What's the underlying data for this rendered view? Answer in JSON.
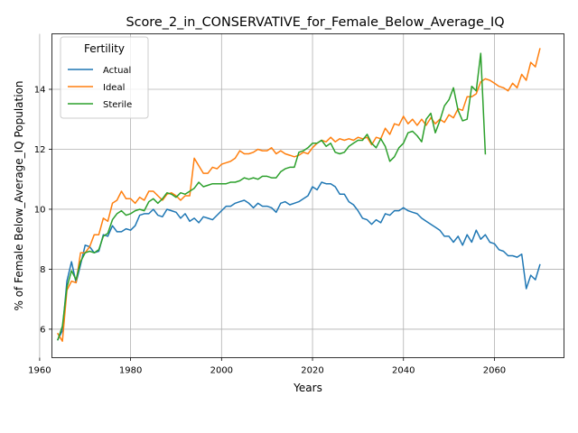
{
  "chart_data": {
    "type": "line",
    "title": "Score_2_in_CONSERVATIVE_for_Female_Below_Average_IQ",
    "xlabel": "Years",
    "ylabel": "% of Female Below_Average_IQ Population",
    "xlim": [
      1962.7,
      2075.3
    ],
    "ylim": [
      5.05,
      15.85
    ],
    "grid": true,
    "xticks": [
      1960,
      1980,
      2000,
      2020,
      2040,
      2060
    ],
    "yticks": [
      6,
      8,
      10,
      12,
      14
    ],
    "legend": {
      "title": "Fertility",
      "placement": "top-left"
    },
    "series": [
      {
        "name": "Actual",
        "color": "#1f77b4",
        "x": [
          1964,
          1965,
          1966,
          1967,
          1968,
          1969,
          1970,
          1971,
          1972,
          1973,
          1974,
          1975,
          1976,
          1977,
          1978,
          1979,
          1980,
          1981,
          1982,
          1983,
          1984,
          1985,
          1986,
          1987,
          1988,
          1989,
          1990,
          1991,
          1992,
          1993,
          1994,
          1995,
          1996,
          1997,
          1998,
          1999,
          2000,
          2001,
          2002,
          2003,
          2004,
          2005,
          2006,
          2007,
          2008,
          2009,
          2010,
          2011,
          2012,
          2013,
          2014,
          2015,
          2016,
          2017,
          2018,
          2019,
          2020,
          2021,
          2022,
          2023,
          2024,
          2025,
          2026,
          2027,
          2028,
          2029,
          2030,
          2031,
          2032,
          2033,
          2034,
          2035,
          2036,
          2037,
          2038,
          2039,
          2040,
          2041,
          2042,
          2043,
          2044,
          2045,
          2046,
          2047,
          2048,
          2049,
          2050,
          2051,
          2052,
          2053,
          2054,
          2055,
          2056,
          2057,
          2058,
          2059,
          2060,
          2061,
          2062,
          2063,
          2064,
          2065,
          2066,
          2067,
          2068,
          2069,
          2070
        ],
        "y": [
          5.65,
          5.95,
          7.6,
          8.25,
          7.55,
          8.15,
          8.8,
          8.75,
          8.55,
          8.6,
          9.15,
          9.1,
          9.45,
          9.25,
          9.25,
          9.35,
          9.3,
          9.45,
          9.8,
          9.85,
          9.85,
          10.0,
          9.8,
          9.75,
          10.0,
          9.95,
          9.9,
          9.7,
          9.85,
          9.6,
          9.7,
          9.55,
          9.75,
          9.7,
          9.65,
          9.8,
          9.95,
          10.1,
          10.1,
          10.2,
          10.25,
          10.3,
          10.2,
          10.05,
          10.2,
          10.1,
          10.1,
          10.05,
          9.9,
          10.2,
          10.25,
          10.15,
          10.2,
          10.25,
          10.35,
          10.45,
          10.75,
          10.65,
          10.9,
          10.85,
          10.85,
          10.75,
          10.5,
          10.5,
          10.25,
          10.15,
          9.95,
          9.7,
          9.65,
          9.5,
          9.65,
          9.55,
          9.85,
          9.8,
          9.95,
          9.95,
          10.05,
          9.95,
          9.9,
          9.85,
          9.7,
          9.6,
          9.5,
          9.4,
          9.3,
          9.1,
          9.1,
          8.9,
          9.1,
          8.8,
          9.15,
          8.9,
          9.3,
          9.0,
          9.15,
          8.9,
          8.85,
          8.65,
          8.6,
          8.45,
          8.45,
          8.4,
          8.5,
          7.35,
          7.8,
          7.65,
          8.15
        ]
      },
      {
        "name": "Ideal",
        "color": "#ff7f0e",
        "x": [
          1964,
          1965,
          1966,
          1967,
          1968,
          1969,
          1970,
          1971,
          1972,
          1973,
          1974,
          1975,
          1976,
          1977,
          1978,
          1979,
          1980,
          1981,
          1982,
          1983,
          1984,
          1985,
          1986,
          1987,
          1988,
          1989,
          1990,
          1991,
          1992,
          1993,
          1994,
          1995,
          1996,
          1997,
          1998,
          1999,
          2000,
          2001,
          2002,
          2003,
          2004,
          2005,
          2006,
          2007,
          2008,
          2009,
          2010,
          2011,
          2012,
          2013,
          2014,
          2015,
          2016,
          2017,
          2018,
          2019,
          2020,
          2021,
          2022,
          2023,
          2024,
          2025,
          2026,
          2027,
          2028,
          2029,
          2030,
          2031,
          2032,
          2033,
          2034,
          2035,
          2036,
          2037,
          2038,
          2039,
          2040,
          2041,
          2042,
          2043,
          2044,
          2045,
          2046,
          2047,
          2048,
          2049,
          2050,
          2051,
          2052,
          2053,
          2054,
          2055,
          2056,
          2057,
          2058,
          2059,
          2060,
          2061,
          2062,
          2063,
          2064,
          2065,
          2066,
          2067,
          2068,
          2069,
          2070
        ],
        "y": [
          5.85,
          5.6,
          7.3,
          7.6,
          7.55,
          8.55,
          8.55,
          8.75,
          9.15,
          9.15,
          9.7,
          9.6,
          10.2,
          10.3,
          10.6,
          10.35,
          10.35,
          10.2,
          10.4,
          10.3,
          10.6,
          10.6,
          10.45,
          10.3,
          10.5,
          10.55,
          10.45,
          10.3,
          10.45,
          10.45,
          11.7,
          11.45,
          11.2,
          11.2,
          11.4,
          11.35,
          11.5,
          11.55,
          11.6,
          11.7,
          11.95,
          11.85,
          11.85,
          11.9,
          12.0,
          11.95,
          11.95,
          12.05,
          11.85,
          11.95,
          11.85,
          11.8,
          11.75,
          11.8,
          11.9,
          11.85,
          12.05,
          12.2,
          12.3,
          12.25,
          12.4,
          12.25,
          12.35,
          12.3,
          12.35,
          12.3,
          12.4,
          12.35,
          12.4,
          12.15,
          12.4,
          12.35,
          12.7,
          12.5,
          12.85,
          12.8,
          13.1,
          12.85,
          13.0,
          12.8,
          13.0,
          12.8,
          13.05,
          12.85,
          13.0,
          12.9,
          13.15,
          13.05,
          13.35,
          13.3,
          13.75,
          13.75,
          13.85,
          14.25,
          14.35,
          14.3,
          14.2,
          14.1,
          14.05,
          13.95,
          14.2,
          14.05,
          14.5,
          14.3,
          14.9,
          14.75,
          15.35
        ]
      },
      {
        "name": "Sterile",
        "color": "#2ca02c",
        "x": [
          1964,
          1965,
          1966,
          1967,
          1968,
          1969,
          1970,
          1971,
          1972,
          1973,
          1974,
          1975,
          1976,
          1977,
          1978,
          1979,
          1980,
          1981,
          1982,
          1983,
          1984,
          1985,
          1986,
          1987,
          1988,
          1989,
          1990,
          1991,
          1992,
          1993,
          1994,
          1995,
          1996,
          1997,
          1998,
          1999,
          2000,
          2001,
          2002,
          2003,
          2004,
          2005,
          2006,
          2007,
          2008,
          2009,
          2010,
          2011,
          2012,
          2013,
          2014,
          2015,
          2016,
          2017,
          2018,
          2019,
          2020,
          2021,
          2022,
          2023,
          2024,
          2025,
          2026,
          2027,
          2028,
          2029,
          2030,
          2031,
          2032,
          2033,
          2034,
          2035,
          2036,
          2037,
          2038,
          2039,
          2040,
          2041,
          2042,
          2043,
          2044,
          2045,
          2046,
          2047,
          2048,
          2049,
          2050,
          2051,
          2052,
          2053,
          2054,
          2055,
          2056,
          2057,
          2058
        ],
        "y": [
          5.65,
          6.1,
          7.4,
          7.95,
          7.65,
          8.25,
          8.55,
          8.6,
          8.55,
          8.65,
          9.1,
          9.2,
          9.65,
          9.85,
          9.95,
          9.8,
          9.85,
          9.95,
          10.0,
          9.95,
          10.25,
          10.35,
          10.2,
          10.35,
          10.55,
          10.5,
          10.4,
          10.55,
          10.5,
          10.6,
          10.7,
          10.9,
          10.75,
          10.8,
          10.85,
          10.85,
          10.85,
          10.85,
          10.9,
          10.9,
          10.95,
          11.05,
          11.0,
          11.05,
          11.0,
          11.1,
          11.1,
          11.05,
          11.05,
          11.25,
          11.35,
          11.4,
          11.4,
          11.9,
          11.95,
          12.05,
          12.2,
          12.2,
          12.3,
          12.1,
          12.2,
          11.9,
          11.85,
          11.9,
          12.1,
          12.2,
          12.3,
          12.3,
          12.5,
          12.2,
          12.05,
          12.35,
          12.1,
          11.6,
          11.75,
          12.05,
          12.2,
          12.55,
          12.6,
          12.45,
          12.25,
          13.0,
          13.2,
          12.55,
          12.95,
          13.45,
          13.65,
          14.05,
          13.3,
          12.95,
          13.0,
          14.1,
          13.95,
          15.2,
          11.85
        ]
      }
    ]
  }
}
